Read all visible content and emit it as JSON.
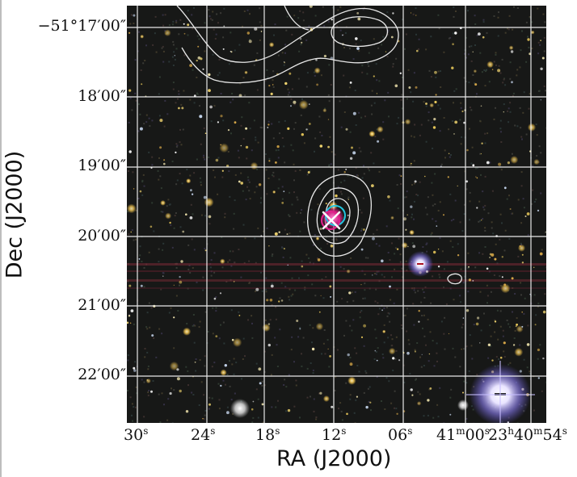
{
  "figure": {
    "xlabel": "RA (J2000)",
    "ylabel": "Dec (J2000)",
    "y_ticks": [
      {
        "main": "−51°17′",
        "sec": "00″"
      },
      {
        "main": "18′",
        "sec": "00″"
      },
      {
        "main": "19′",
        "sec": "00″"
      },
      {
        "main": "20′",
        "sec": "00″"
      },
      {
        "main": "21′",
        "sec": "00″"
      },
      {
        "main": "22′",
        "sec": "00″"
      }
    ],
    "x_ticks": [
      {
        "v": "30",
        "u": "s"
      },
      {
        "v": "24",
        "u": "s"
      },
      {
        "v": "18",
        "u": "s"
      },
      {
        "v": "12",
        "u": "s"
      },
      {
        "v": "06",
        "u": "s"
      },
      {
        "v": "41",
        "u": "m",
        "v2": "00",
        "u2": "s"
      },
      {
        "v": "23",
        "u": "h",
        "v2": "40",
        "u2": "m",
        "v3": "54",
        "u3": "s"
      }
    ]
  },
  "colors": {
    "sky": "#171817",
    "grid": "#ffffff",
    "contour": "#e8e8e8",
    "marker_cross": "#ffffff",
    "circle_cyan": "#22c6e0",
    "circle_magenta": "#e0208c",
    "bright_star": "#b6a8ff"
  }
}
